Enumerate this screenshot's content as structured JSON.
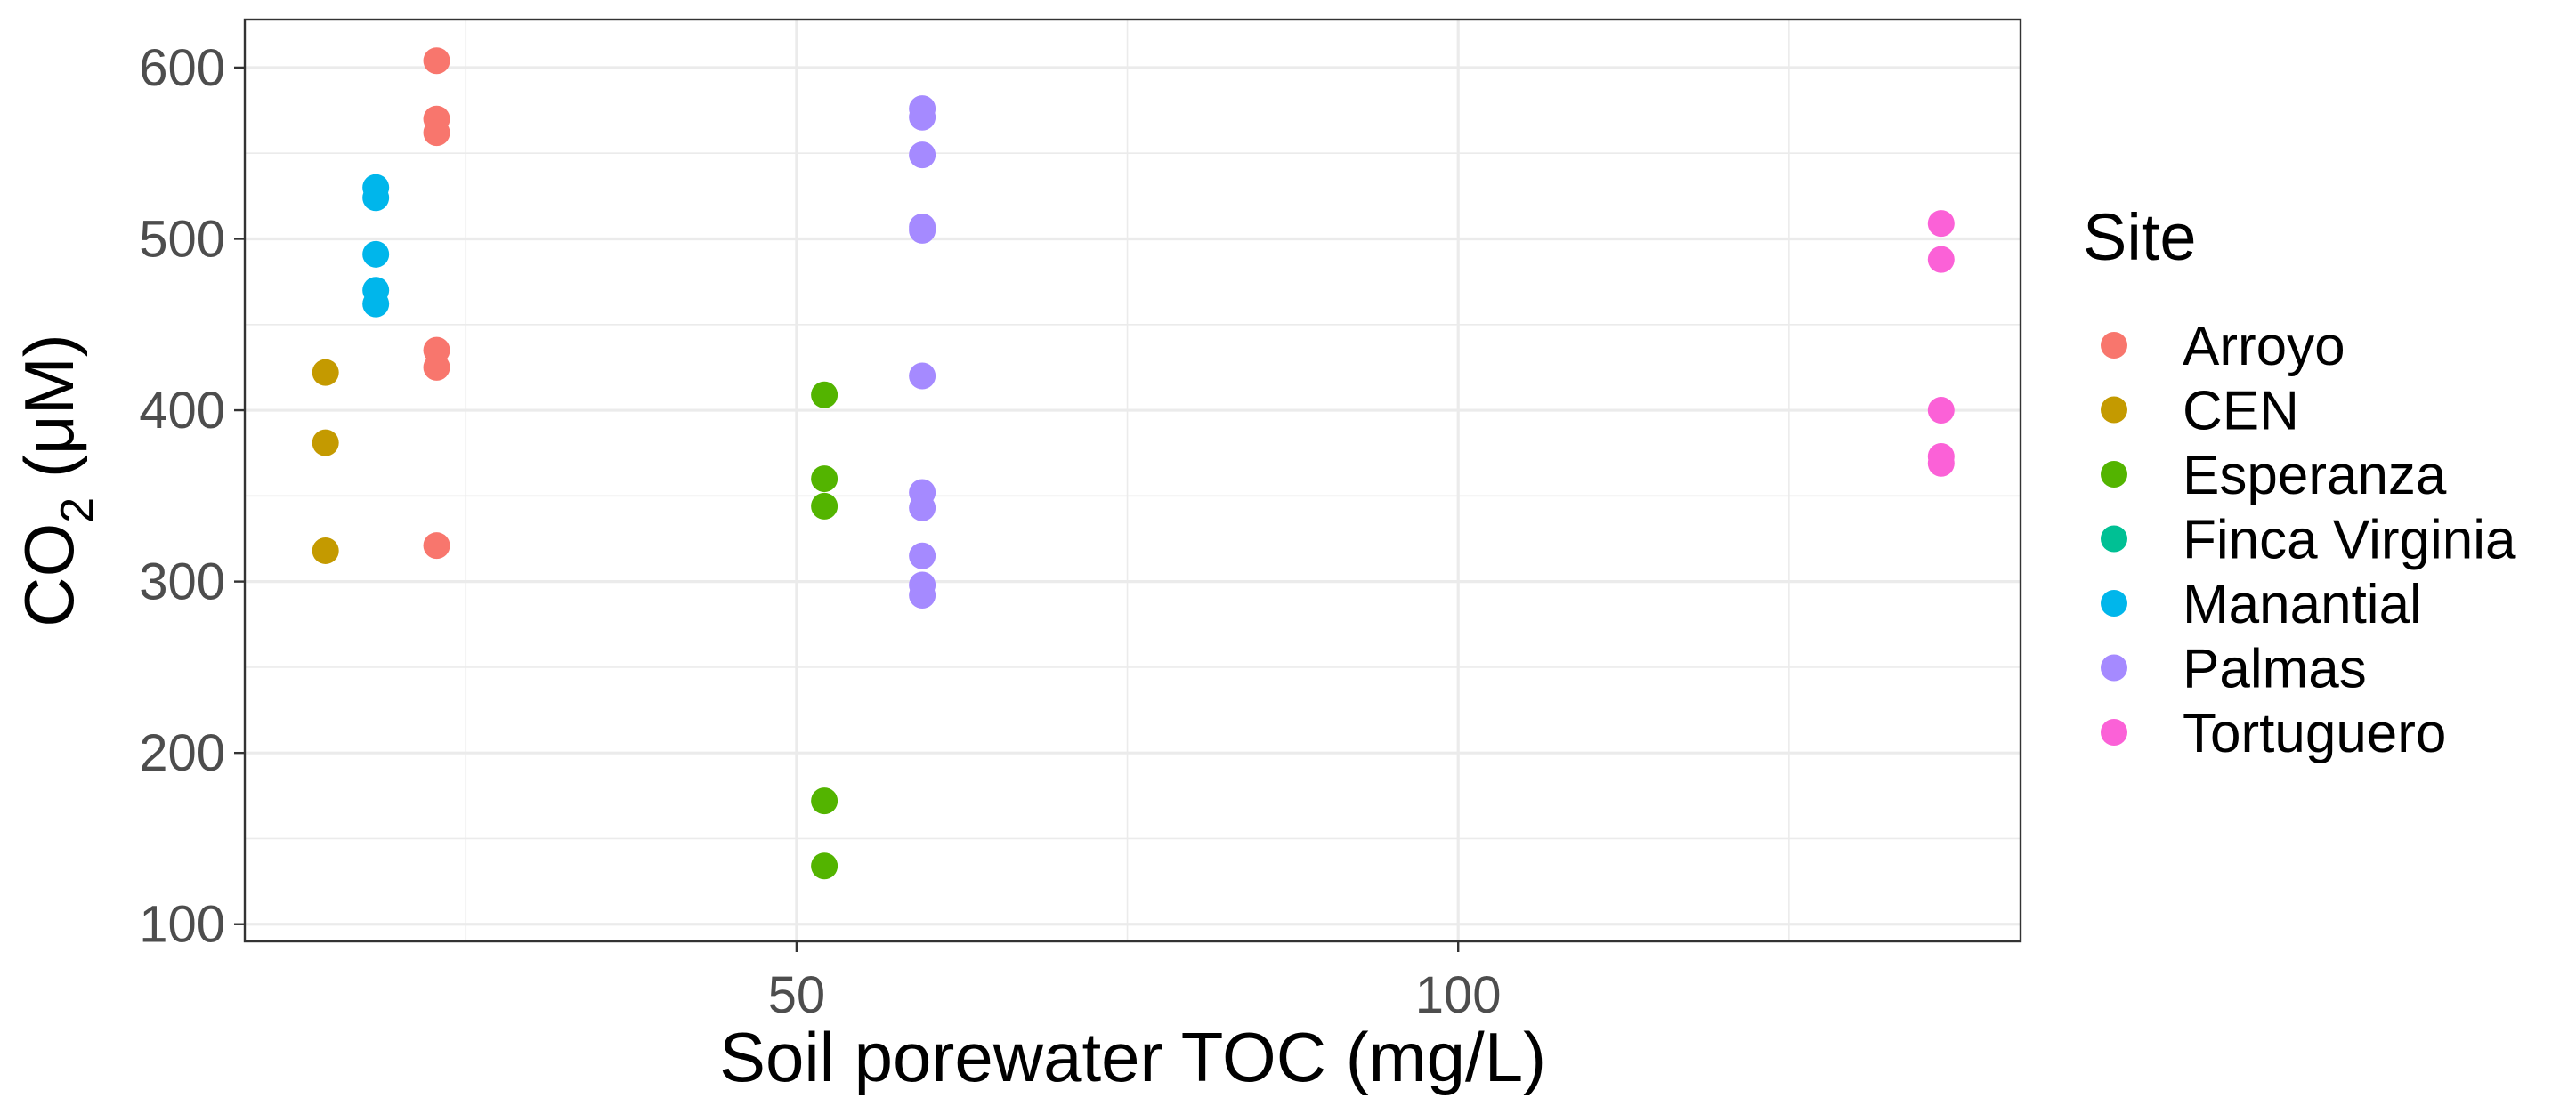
{
  "chart_data": {
    "type": "scatter",
    "xlabel": "Soil porewater TOC (mg/L)",
    "ylabel": {
      "main": "CO",
      "subscript": "2",
      "unit": " (μM)"
    },
    "xlim": [
      8.3,
      142.5
    ],
    "ylim": [
      90,
      628
    ],
    "x_ticks": [
      50,
      100
    ],
    "x_tick_labels": [
      "50",
      "100"
    ],
    "x_minor_ticks": [
      25,
      75,
      125
    ],
    "y_ticks": [
      100,
      200,
      300,
      400,
      500,
      600
    ],
    "y_tick_labels": [
      "100",
      "200",
      "300",
      "400",
      "500",
      "600"
    ],
    "y_minor_ticks": [
      150,
      250,
      350,
      450,
      550
    ],
    "grid": true,
    "legend": {
      "title": "Site",
      "position": "right"
    },
    "series": [
      {
        "name": "Arroyo",
        "color": "#F8766D",
        "points": [
          [
            22.8,
            604
          ],
          [
            22.8,
            570
          ],
          [
            22.8,
            562
          ],
          [
            22.8,
            435
          ],
          [
            22.8,
            425
          ],
          [
            22.8,
            321
          ]
        ]
      },
      {
        "name": "CEN",
        "color": "#C49A00",
        "points": [
          [
            14.4,
            422
          ],
          [
            14.4,
            381
          ],
          [
            14.4,
            318
          ]
        ]
      },
      {
        "name": "Esperanza",
        "color": "#53B400",
        "points": [
          [
            52.1,
            409
          ],
          [
            52.1,
            360
          ],
          [
            52.1,
            344
          ],
          [
            52.1,
            172
          ],
          [
            52.1,
            134
          ]
        ]
      },
      {
        "name": "Finca Virginia",
        "color": "#00C094",
        "points": []
      },
      {
        "name": "Manantial",
        "color": "#00B6EB",
        "points": [
          [
            18.2,
            530
          ],
          [
            18.2,
            524
          ],
          [
            18.2,
            491
          ],
          [
            18.2,
            470
          ],
          [
            18.2,
            462
          ]
        ]
      },
      {
        "name": "Palmas",
        "color": "#A58AFF",
        "points": [
          [
            59.5,
            576
          ],
          [
            59.5,
            571
          ],
          [
            59.5,
            549
          ],
          [
            59.5,
            507
          ],
          [
            59.5,
            505
          ],
          [
            59.5,
            420
          ],
          [
            59.5,
            352
          ],
          [
            59.5,
            343
          ],
          [
            59.5,
            315
          ],
          [
            59.5,
            298
          ],
          [
            59.5,
            292
          ]
        ]
      },
      {
        "name": "Tortuguero",
        "color": "#FB61D7",
        "points": [
          [
            136.5,
            509
          ],
          [
            136.5,
            488
          ],
          [
            136.5,
            400
          ],
          [
            136.5,
            373
          ],
          [
            136.5,
            369
          ]
        ]
      }
    ]
  }
}
